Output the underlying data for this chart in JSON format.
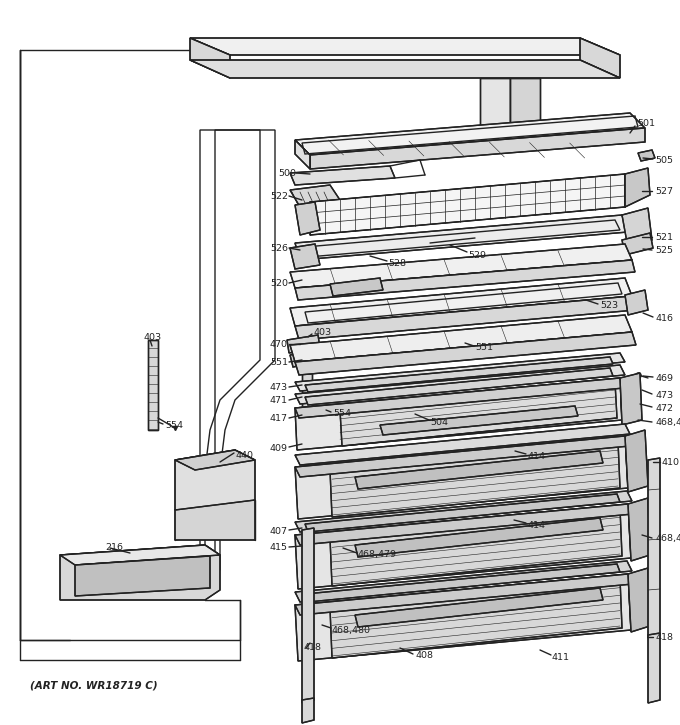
{
  "art_no_text": "(ART NO. WR18719 C)",
  "background_color": "#ffffff",
  "line_color": "#222222",
  "text_color": "#222222",
  "lw_main": 1.0,
  "lw_thin": 0.5,
  "font_size_labels": 6.8,
  "font_size_art": 7.5,
  "figsize": [
    6.8,
    7.25
  ],
  "dpi": 100,
  "xlim": [
    0,
    680
  ],
  "ylim": [
    0,
    725
  ]
}
